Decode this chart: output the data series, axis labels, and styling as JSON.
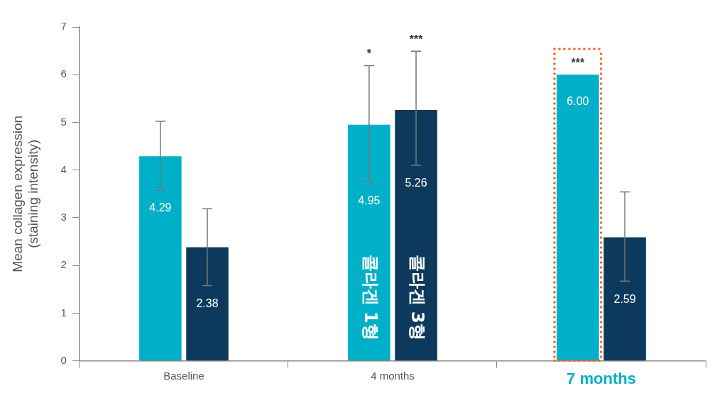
{
  "chart_data": {
    "type": "bar",
    "ylabel": "Mean collagen expression\n(staining intensity)",
    "categories": [
      "Baseline",
      "4 months",
      "7 months"
    ],
    "series": [
      {
        "name": "콜라겐 1형",
        "color": "#00b0c8",
        "values": [
          4.29,
          4.95,
          6.0
        ],
        "value_labels": [
          "4.29",
          "4.95",
          "6.00"
        ],
        "errors": [
          [
            3.58,
            5.02
          ],
          [
            3.74,
            6.19
          ],
          null
        ]
      },
      {
        "name": "콜라겐 3형",
        "color": "#0d3a5c",
        "values": [
          2.38,
          5.26,
          2.59
        ],
        "value_labels": [
          "2.38",
          "5.26",
          "2.59"
        ],
        "errors": [
          [
            1.58,
            3.19
          ],
          [
            4.1,
            6.49
          ],
          [
            1.67,
            3.54
          ]
        ]
      }
    ],
    "ylim": [
      0,
      7
    ],
    "yticks": [
      0,
      1,
      2,
      3,
      4,
      5,
      6,
      7
    ],
    "grid": false,
    "legend": false,
    "annotations": [
      "*",
      "***",
      "***"
    ]
  }
}
